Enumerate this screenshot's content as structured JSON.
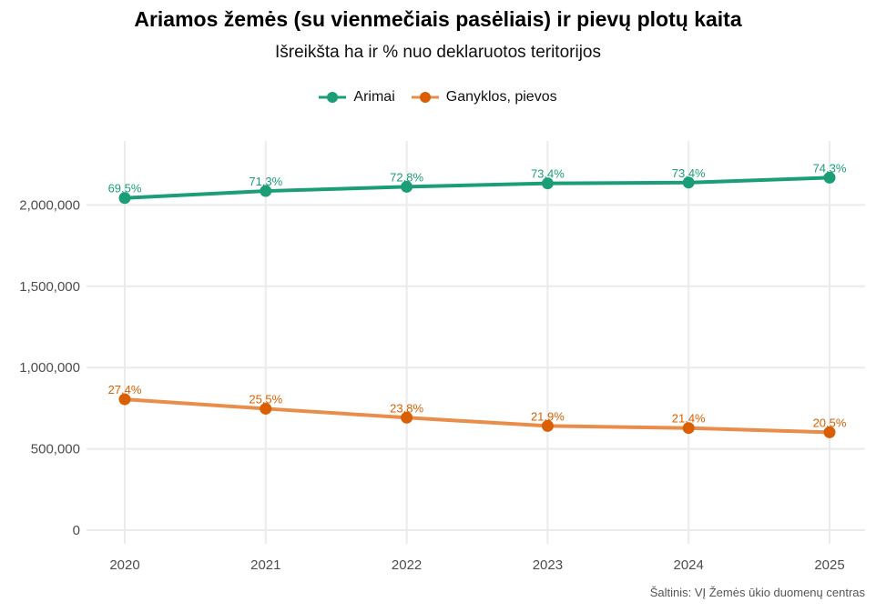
{
  "chart_data": {
    "type": "line",
    "title": "Ariamos žemės (su vienmečiais pasėliais) ir pievų plotų kaita",
    "subtitle": "Išreikšta ha ir % nuo deklaruotos teritorijos",
    "caption": "Šaltinis: VĮ Žemės ūkio duomenų centras",
    "xlabel": "",
    "ylabel": "",
    "x": [
      "2020",
      "2021",
      "2022",
      "2023",
      "2024",
      "2025"
    ],
    "ylim": [
      -84000,
      2394000
    ],
    "yticks": [
      0,
      500000,
      1000000,
      1500000,
      2000000
    ],
    "ytick_labels": [
      "0",
      "500,000",
      "1,000,000",
      "1,500,000",
      "2,000,000"
    ],
    "grid": true,
    "legend_position": "top",
    "series": [
      {
        "name": "Arimai",
        "color": "#1b9e77",
        "values": [
          2043000,
          2086000,
          2112000,
          2133000,
          2138000,
          2168000
        ],
        "labels": [
          "69.5%",
          "71.3%",
          "72.8%",
          "73.4%",
          "73.4%",
          "74.3%"
        ]
      },
      {
        "name": "Ganyklos, pievos",
        "color": "#d95f02",
        "line_color": "#e88d4a",
        "values": [
          805000,
          747000,
          692000,
          641000,
          628000,
          602000
        ],
        "labels": [
          "27.4%",
          "25.5%",
          "23.8%",
          "21.9%",
          "21.4%",
          "20.5%"
        ]
      }
    ]
  }
}
